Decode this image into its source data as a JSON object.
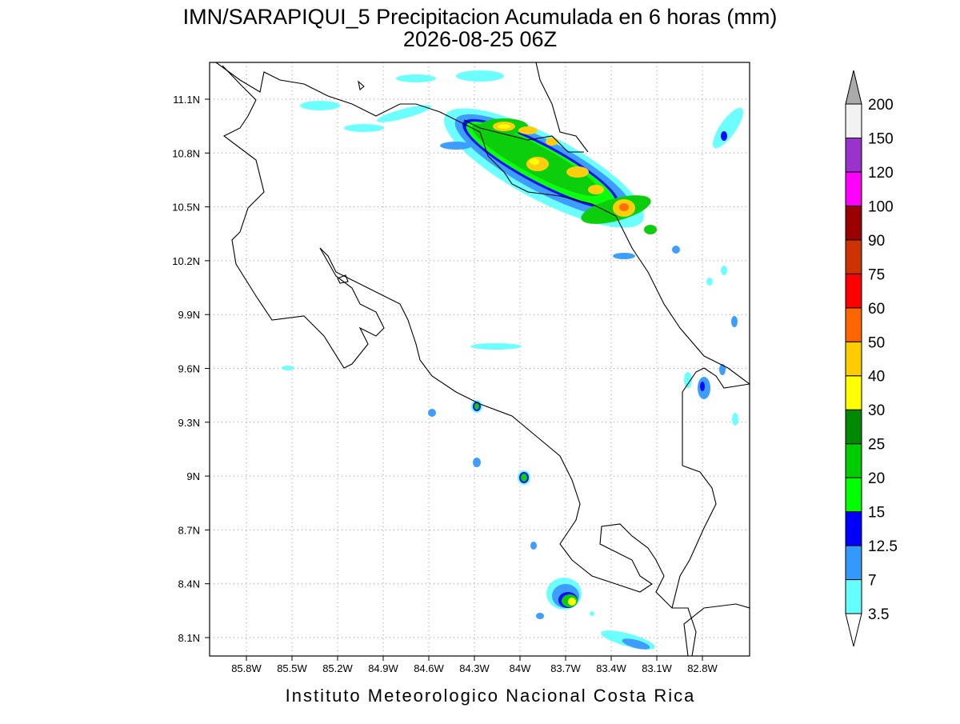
{
  "title": "IMN/SARAPIQUI_5 Precipitacion Acumulada en 6 horas (mm)",
  "subtitle": "2026-08-25 06Z",
  "map": {
    "lon_labels": [
      "85.8W",
      "85.5W",
      "85.2W",
      "84.9W",
      "84.6W",
      "84.3W",
      "84W",
      "83.7W",
      "83.4W",
      "83.1W",
      "82.8W"
    ],
    "lat_labels": [
      "11.1N",
      "10.8N",
      "10.5N",
      "10.2N",
      "9.9N",
      "9.6N",
      "9.3N",
      "9N",
      "8.7N",
      "8.4N",
      "8.1N"
    ]
  },
  "colorbar": {
    "labels": [
      "3.5",
      "7",
      "12.5",
      "15",
      "20",
      "25",
      "30",
      "40",
      "50",
      "60",
      "75",
      "90",
      "100",
      "120",
      "150",
      "200"
    ],
    "colors": [
      "#66ffff",
      "#3399ff",
      "#0000ff",
      "#00ff00",
      "#00cc00",
      "#008800",
      "#ffff00",
      "#ffcc00",
      "#ff6600",
      "#ff0000",
      "#cc3300",
      "#990000",
      "#ff00ff",
      "#9933cc",
      "#f2f2f2"
    ],
    "over_color": "#aaaaaa",
    "under_color": "#ffffff"
  },
  "footer": "Instituto Meteorologico Nacional Costa Rica"
}
